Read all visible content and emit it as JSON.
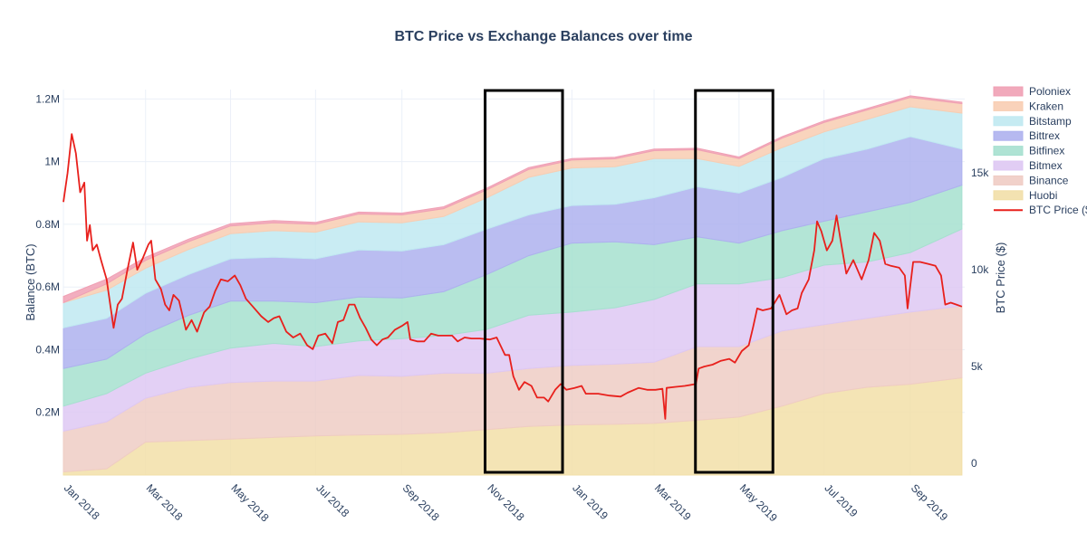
{
  "chart_data": {
    "type": "area",
    "title": "BTC Price vs Exchange Balances over time",
    "xlabel": "",
    "ylabel": "Balance (BTC)",
    "y2label": "BTC Price ($)",
    "x_range": [
      "2018-01-01",
      "2019-10-10"
    ],
    "ylim": [
      0,
      1230000
    ],
    "y2lim": [
      -600,
      19300
    ],
    "y_ticks": [
      {
        "value": 200000,
        "label": "0.2M"
      },
      {
        "value": 400000,
        "label": "0.4M"
      },
      {
        "value": 600000,
        "label": "0.6M"
      },
      {
        "value": 800000,
        "label": "0.8M"
      },
      {
        "value": 1000000,
        "label": "1M"
      },
      {
        "value": 1200000,
        "label": "1.2M"
      }
    ],
    "y2_ticks": [
      {
        "value": 0,
        "label": "0"
      },
      {
        "value": 5000,
        "label": "5k"
      },
      {
        "value": 10000,
        "label": "10k"
      },
      {
        "value": 15000,
        "label": "15k"
      }
    ],
    "x_ticks": [
      {
        "date": "2018-01-01",
        "label": "Jan 2018"
      },
      {
        "date": "2018-03-01",
        "label": "Mar 2018"
      },
      {
        "date": "2018-05-01",
        "label": "May 2018"
      },
      {
        "date": "2018-07-01",
        "label": "Jul 2018"
      },
      {
        "date": "2018-09-01",
        "label": "Sep 2018"
      },
      {
        "date": "2018-11-01",
        "label": "Nov 2018"
      },
      {
        "date": "2019-01-01",
        "label": "Jan 2019"
      },
      {
        "date": "2019-03-01",
        "label": "Mar 2019"
      },
      {
        "date": "2019-05-01",
        "label": "May 2019"
      },
      {
        "date": "2019-07-01",
        "label": "Jul 2019"
      },
      {
        "date": "2019-09-01",
        "label": "Sep 2019"
      }
    ],
    "stack_dates": [
      "2018-01-01",
      "2018-02-01",
      "2018-03-01",
      "2018-04-01",
      "2018-05-01",
      "2018-06-01",
      "2018-07-01",
      "2018-08-01",
      "2018-09-01",
      "2018-10-01",
      "2018-11-01",
      "2018-12-01",
      "2019-01-01",
      "2019-02-01",
      "2019-03-01",
      "2019-04-01",
      "2019-05-01",
      "2019-06-01",
      "2019-07-01",
      "2019-08-01",
      "2019-09-01",
      "2019-10-08"
    ],
    "series": [
      {
        "name": "Huobi",
        "color": "#f2dfa8",
        "values": [
          10000,
          20000,
          105000,
          110000,
          115000,
          120000,
          125000,
          128000,
          130000,
          135000,
          145000,
          155000,
          160000,
          162000,
          165000,
          175000,
          185000,
          220000,
          260000,
          280000,
          290000,
          310000
        ]
      },
      {
        "name": "Binance",
        "color": "#efccc4",
        "values": [
          130000,
          150000,
          140000,
          170000,
          180000,
          180000,
          175000,
          190000,
          185000,
          190000,
          180000,
          185000,
          190000,
          192000,
          195000,
          235000,
          225000,
          240000,
          220000,
          220000,
          230000,
          230000
        ]
      },
      {
        "name": "Bitmex",
        "color": "#dec8f3",
        "values": [
          80000,
          90000,
          80000,
          90000,
          110000,
          120000,
          110000,
          110000,
          120000,
          120000,
          140000,
          170000,
          170000,
          180000,
          200000,
          200000,
          200000,
          170000,
          190000,
          180000,
          190000,
          245000
        ]
      },
      {
        "name": "Bitfinex",
        "color": "#a6e0cf",
        "values": [
          120000,
          110000,
          125000,
          140000,
          150000,
          135000,
          140000,
          140000,
          130000,
          140000,
          175000,
          190000,
          220000,
          210000,
          175000,
          150000,
          130000,
          150000,
          140000,
          160000,
          160000,
          140000
        ]
      },
      {
        "name": "Bittrex",
        "color": "#aeb1ee",
        "values": [
          130000,
          130000,
          130000,
          130000,
          135000,
          140000,
          140000,
          150000,
          150000,
          150000,
          145000,
          130000,
          120000,
          120000,
          150000,
          160000,
          160000,
          170000,
          200000,
          200000,
          210000,
          115000
        ]
      },
      {
        "name": "Bitstamp",
        "color": "#c0e9f1",
        "values": [
          80000,
          90000,
          80000,
          80000,
          80000,
          85000,
          85000,
          90000,
          90000,
          90000,
          100000,
          120000,
          120000,
          120000,
          125000,
          90000,
          85000,
          95000,
          85000,
          95000,
          95000,
          115000
        ]
      },
      {
        "name": "Kraken",
        "color": "#f8cdb2",
        "values": [
          0,
          20000,
          25000,
          25000,
          25000,
          25000,
          25000,
          25000,
          25000,
          25000,
          25000,
          25000,
          25000,
          25000,
          25000,
          28000,
          25000,
          30000,
          30000,
          30000,
          30000,
          30000
        ]
      },
      {
        "name": "Poloniex",
        "color": "#f0a0b4",
        "values": [
          20000,
          15000,
          10000,
          8000,
          7000,
          7000,
          6000,
          6000,
          6000,
          6000,
          6000,
          6000,
          5000,
          5000,
          5000,
          5000,
          5000,
          5000,
          5000,
          5000,
          5000,
          5000
        ]
      }
    ],
    "price_series": {
      "name": "BTC Price ($)",
      "color": "#e8201c",
      "points": [
        [
          "2018-01-01",
          13500
        ],
        [
          "2018-01-04",
          15000
        ],
        [
          "2018-01-07",
          17000
        ],
        [
          "2018-01-10",
          16000
        ],
        [
          "2018-01-13",
          14000
        ],
        [
          "2018-01-16",
          14500
        ],
        [
          "2018-01-18",
          11500
        ],
        [
          "2018-01-20",
          12300
        ],
        [
          "2018-01-22",
          11000
        ],
        [
          "2018-01-25",
          11300
        ],
        [
          "2018-01-28",
          10500
        ],
        [
          "2018-02-01",
          9500
        ],
        [
          "2018-02-04",
          8000
        ],
        [
          "2018-02-06",
          7000
        ],
        [
          "2018-02-09",
          8200
        ],
        [
          "2018-02-12",
          8500
        ],
        [
          "2018-02-16",
          10000
        ],
        [
          "2018-02-20",
          11400
        ],
        [
          "2018-02-23",
          10000
        ],
        [
          "2018-02-27",
          10600
        ],
        [
          "2018-03-03",
          11300
        ],
        [
          "2018-03-05",
          11500
        ],
        [
          "2018-03-08",
          9500
        ],
        [
          "2018-03-12",
          9000
        ],
        [
          "2018-03-15",
          8200
        ],
        [
          "2018-03-18",
          7900
        ],
        [
          "2018-03-21",
          8700
        ],
        [
          "2018-03-25",
          8400
        ],
        [
          "2018-03-30",
          6900
        ],
        [
          "2018-04-03",
          7400
        ],
        [
          "2018-04-07",
          6800
        ],
        [
          "2018-04-12",
          7800
        ],
        [
          "2018-04-16",
          8100
        ],
        [
          "2018-04-20",
          8900
        ],
        [
          "2018-04-24",
          9500
        ],
        [
          "2018-04-29",
          9400
        ],
        [
          "2018-05-04",
          9700
        ],
        [
          "2018-05-08",
          9200
        ],
        [
          "2018-05-12",
          8500
        ],
        [
          "2018-05-17",
          8100
        ],
        [
          "2018-05-23",
          7600
        ],
        [
          "2018-05-28",
          7300
        ],
        [
          "2018-06-01",
          7500
        ],
        [
          "2018-06-05",
          7600
        ],
        [
          "2018-06-10",
          6800
        ],
        [
          "2018-06-15",
          6500
        ],
        [
          "2018-06-20",
          6700
        ],
        [
          "2018-06-25",
          6100
        ],
        [
          "2018-06-29",
          5900
        ],
        [
          "2018-07-03",
          6600
        ],
        [
          "2018-07-08",
          6700
        ],
        [
          "2018-07-13",
          6200
        ],
        [
          "2018-07-17",
          7300
        ],
        [
          "2018-07-21",
          7400
        ],
        [
          "2018-07-25",
          8200
        ],
        [
          "2018-07-29",
          8200
        ],
        [
          "2018-08-02",
          7500
        ],
        [
          "2018-08-06",
          7000
        ],
        [
          "2018-08-10",
          6400
        ],
        [
          "2018-08-14",
          6100
        ],
        [
          "2018-08-18",
          6400
        ],
        [
          "2018-08-22",
          6500
        ],
        [
          "2018-08-27",
          6900
        ],
        [
          "2018-09-01",
          7100
        ],
        [
          "2018-09-05",
          7300
        ],
        [
          "2018-09-07",
          6400
        ],
        [
          "2018-09-12",
          6300
        ],
        [
          "2018-09-17",
          6300
        ],
        [
          "2018-09-22",
          6700
        ],
        [
          "2018-09-27",
          6600
        ],
        [
          "2018-10-02",
          6600
        ],
        [
          "2018-10-07",
          6600
        ],
        [
          "2018-10-11",
          6300
        ],
        [
          "2018-10-16",
          6500
        ],
        [
          "2018-10-21",
          6450
        ],
        [
          "2018-10-27",
          6450
        ],
        [
          "2018-11-03",
          6400
        ],
        [
          "2018-11-08",
          6500
        ],
        [
          "2018-11-14",
          5600
        ],
        [
          "2018-11-17",
          5600
        ],
        [
          "2018-11-20",
          4500
        ],
        [
          "2018-11-24",
          3800
        ],
        [
          "2018-11-28",
          4200
        ],
        [
          "2018-12-03",
          4000
        ],
        [
          "2018-12-07",
          3400
        ],
        [
          "2018-12-12",
          3400
        ],
        [
          "2018-12-15",
          3200
        ],
        [
          "2018-12-20",
          3800
        ],
        [
          "2018-12-24",
          4100
        ],
        [
          "2018-12-28",
          3800
        ],
        [
          "2019-01-03",
          3900
        ],
        [
          "2019-01-08",
          4000
        ],
        [
          "2019-01-11",
          3600
        ],
        [
          "2019-01-20",
          3600
        ],
        [
          "2019-01-28",
          3500
        ],
        [
          "2019-02-05",
          3450
        ],
        [
          "2019-02-10",
          3650
        ],
        [
          "2019-02-18",
          3900
        ],
        [
          "2019-02-24",
          3800
        ],
        [
          "2019-03-02",
          3800
        ],
        [
          "2019-03-07",
          3850
        ],
        [
          "2019-03-09",
          2300
        ],
        [
          "2019-03-10",
          3900
        ],
        [
          "2019-03-16",
          3950
        ],
        [
          "2019-03-23",
          4000
        ],
        [
          "2019-03-31",
          4100
        ],
        [
          "2019-04-02",
          4900
        ],
        [
          "2019-04-06",
          5000
        ],
        [
          "2019-04-12",
          5100
        ],
        [
          "2019-04-18",
          5300
        ],
        [
          "2019-04-24",
          5400
        ],
        [
          "2019-04-28",
          5200
        ],
        [
          "2019-05-03",
          5800
        ],
        [
          "2019-05-08",
          6100
        ],
        [
          "2019-05-11",
          7000
        ],
        [
          "2019-05-14",
          8000
        ],
        [
          "2019-05-18",
          7900
        ],
        [
          "2019-05-24",
          8000
        ],
        [
          "2019-05-30",
          8700
        ],
        [
          "2019-06-04",
          7700
        ],
        [
          "2019-06-08",
          7900
        ],
        [
          "2019-06-12",
          8000
        ],
        [
          "2019-06-15",
          8800
        ],
        [
          "2019-06-20",
          9500
        ],
        [
          "2019-06-24",
          11000
        ],
        [
          "2019-06-26",
          12500
        ],
        [
          "2019-06-29",
          12000
        ],
        [
          "2019-07-03",
          11000
        ],
        [
          "2019-07-07",
          11500
        ],
        [
          "2019-07-10",
          12800
        ],
        [
          "2019-07-13",
          11500
        ],
        [
          "2019-07-17",
          9800
        ],
        [
          "2019-07-22",
          10500
        ],
        [
          "2019-07-28",
          9500
        ],
        [
          "2019-08-02",
          10500
        ],
        [
          "2019-08-06",
          11900
        ],
        [
          "2019-08-10",
          11500
        ],
        [
          "2019-08-14",
          10300
        ],
        [
          "2019-08-18",
          10200
        ],
        [
          "2019-08-24",
          10100
        ],
        [
          "2019-08-28",
          9700
        ],
        [
          "2019-08-30",
          8000
        ],
        [
          "2019-09-03",
          10400
        ],
        [
          "2019-09-08",
          10400
        ],
        [
          "2019-09-14",
          10300
        ],
        [
          "2019-09-19",
          10200
        ],
        [
          "2019-09-23",
          9700
        ],
        [
          "2019-09-26",
          8200
        ],
        [
          "2019-09-30",
          8300
        ],
        [
          "2019-10-04",
          8200
        ],
        [
          "2019-10-08",
          8100
        ]
      ]
    },
    "highlight_boxes": [
      {
        "start": "2018-11-01",
        "end": "2018-12-24"
      },
      {
        "start": "2019-04-01",
        "end": "2019-05-24"
      }
    ],
    "grid": true,
    "legend_position": "right"
  }
}
